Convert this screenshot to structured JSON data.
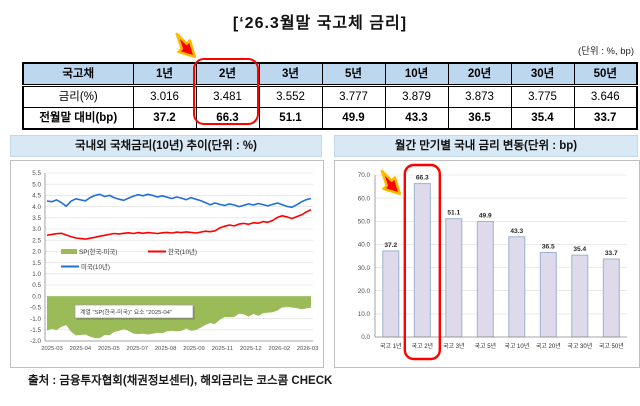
{
  "page": {
    "title": "[‘26.3월말 국고체 금리]",
    "unit_note": "(단위 : %, bp)",
    "source": "출처 : 금융투자협회(채권정보센터), 해외금리는 코스콤 CHECK"
  },
  "table": {
    "header": [
      "국고채",
      "1년",
      "2년",
      "3년",
      "5년",
      "10년",
      "20년",
      "30년",
      "50년"
    ],
    "rows": [
      {
        "label": "금리(%)",
        "values": [
          "3.016",
          "3.481",
          "3.552",
          "3.777",
          "3.879",
          "3.873",
          "3.775",
          "3.646"
        ],
        "bold": false
      },
      {
        "label": "전월말 대비(bp)",
        "values": [
          "37.2",
          "66.3",
          "51.1",
          "49.9",
          "43.3",
          "36.5",
          "35.4",
          "33.7"
        ],
        "bold": true
      }
    ],
    "highlight_column": "2년"
  },
  "chart_data": [
    {
      "type": "line",
      "title": "국내외 국채금리(10년) 추이(단위 : %)",
      "x_tick_labels": [
        "2025-03",
        "2025-04",
        "2025-05",
        "2025-07",
        "2025-08",
        "2025-09",
        "2025-11",
        "2025-12",
        "2026-02",
        "2026-03"
      ],
      "ylim": [
        -2.0,
        5.5
      ],
      "y_step": 0.5,
      "grid": true,
      "legend_position": "inside-middle",
      "tooltip": "계열 \"SP(한국-미국)\" 요소 \"2025-04\"",
      "series": [
        {
          "name": "SP(한국-미국)",
          "kind": "area",
          "color": "#9BBB59",
          "values": [
            -1.53,
            -1.46,
            -1.51,
            -1.37,
            -1.29,
            -1.58,
            -1.75,
            -1.73,
            -1.71,
            -1.81,
            -1.87,
            -1.87,
            -1.73,
            -1.74,
            -1.6,
            -1.55,
            -1.47,
            -1.55,
            -1.67,
            -1.69,
            -1.67,
            -1.71,
            -1.68,
            -1.63,
            -1.65,
            -1.57,
            -1.54,
            -1.57,
            -1.54,
            -1.44,
            -1.55,
            -1.51,
            -1.41,
            -1.28,
            -1.2,
            -1.24,
            -1.05,
            -0.93,
            -0.94,
            -0.93,
            -0.78,
            -0.81,
            -0.91,
            -0.79,
            -0.88,
            -0.76,
            -0.73,
            -0.72,
            -0.64,
            -0.5,
            -0.47,
            -0.5,
            -0.53,
            -0.58,
            -0.55,
            -0.5
          ]
        },
        {
          "name": "한국(10년)",
          "kind": "line",
          "color": "#FF0000",
          "values": [
            2.72,
            2.76,
            2.79,
            2.81,
            2.73,
            2.66,
            2.6,
            2.57,
            2.55,
            2.59,
            2.63,
            2.68,
            2.72,
            2.76,
            2.8,
            2.78,
            2.81,
            2.83,
            2.8,
            2.84,
            2.81,
            2.84,
            2.82,
            2.8,
            2.83,
            2.85,
            2.82,
            2.86,
            2.84,
            2.87,
            2.85,
            2.82,
            2.86,
            2.9,
            2.88,
            2.92,
            3.05,
            3.12,
            3.18,
            3.14,
            3.22,
            3.25,
            3.21,
            3.28,
            3.26,
            3.33,
            3.3,
            3.38,
            3.52,
            3.59,
            3.54,
            3.47,
            3.55,
            3.63,
            3.76,
            3.86
          ]
        },
        {
          "name": "미국(10년)",
          "kind": "line",
          "color": "#1F6FDB",
          "values": [
            4.25,
            4.22,
            4.3,
            4.18,
            4.02,
            4.24,
            4.35,
            4.3,
            4.26,
            4.4,
            4.5,
            4.55,
            4.45,
            4.5,
            4.4,
            4.33,
            4.28,
            4.38,
            4.47,
            4.53,
            4.48,
            4.55,
            4.5,
            4.43,
            4.48,
            4.42,
            4.36,
            4.43,
            4.38,
            4.31,
            4.4,
            4.33,
            4.27,
            4.18,
            4.08,
            4.16,
            4.1,
            4.05,
            4.12,
            4.07,
            4.0,
            4.06,
            4.12,
            4.07,
            4.14,
            4.09,
            4.03,
            4.1,
            4.16,
            4.09,
            4.01,
            3.97,
            4.08,
            4.21,
            4.31,
            4.36
          ]
        }
      ]
    },
    {
      "type": "bar",
      "title": "월간 만기별 국내 금리 변동(단위 : bp)",
      "categories": [
        "국고 1년",
        "국고 2년",
        "국고 3년",
        "국고 5년",
        "국고 10년",
        "국고 20년",
        "국고 30년",
        "국고 50년"
      ],
      "values": [
        37.2,
        66.3,
        51.1,
        49.9,
        43.3,
        36.5,
        35.4,
        33.7
      ],
      "ylim": [
        0,
        70
      ],
      "y_step": 10,
      "grid": true,
      "highlight_index": 1,
      "bar_fill": "#DEDAEB",
      "bar_border": "#9DB3D1"
    }
  ],
  "colors": {
    "table_header_bg": "#BCD7EE",
    "panel_title_bg": "#D8E8F4",
    "highlight_red": "#FF0000",
    "arrow_fill": "#FF0000",
    "arrow_stroke": "#FFB900"
  }
}
